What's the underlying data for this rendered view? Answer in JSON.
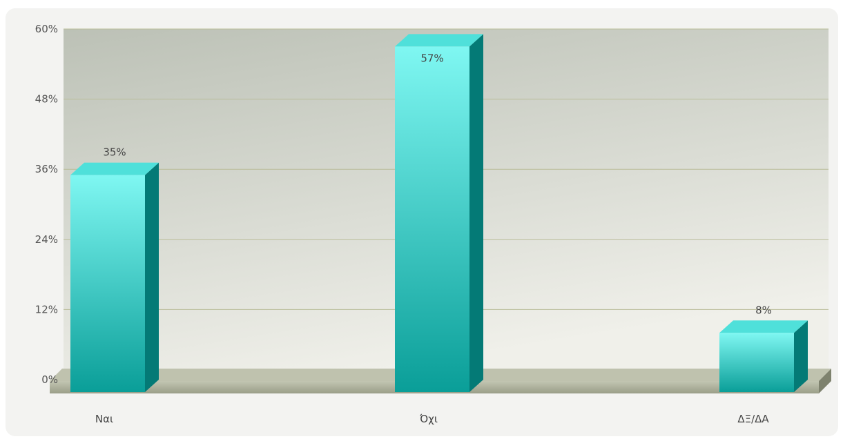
{
  "chart_data": {
    "type": "bar",
    "categories": [
      "Ναι",
      "Όχι",
      "ΔΞ/ΔΑ"
    ],
    "values": [
      35,
      57,
      8
    ],
    "data_labels": [
      "35%",
      "57%",
      "8%"
    ],
    "ylim": [
      0,
      60
    ],
    "yticks": [
      "0%",
      "12%",
      "24%",
      "36%",
      "48%",
      "60%"
    ],
    "title": "",
    "xlabel": "",
    "ylabel": "",
    "grid": true,
    "style": "3d",
    "colors": {
      "bar_light": "#7ff7f2",
      "bar_dark": "#0a9e98",
      "bar_side": "#047a76",
      "bar_top": "#4fe0da",
      "grid": "#b9bc98",
      "plot_bg_top": "#bcc1b6",
      "plot_bg_bottom": "#f0f0ea",
      "floor": "#a9ad98"
    }
  }
}
